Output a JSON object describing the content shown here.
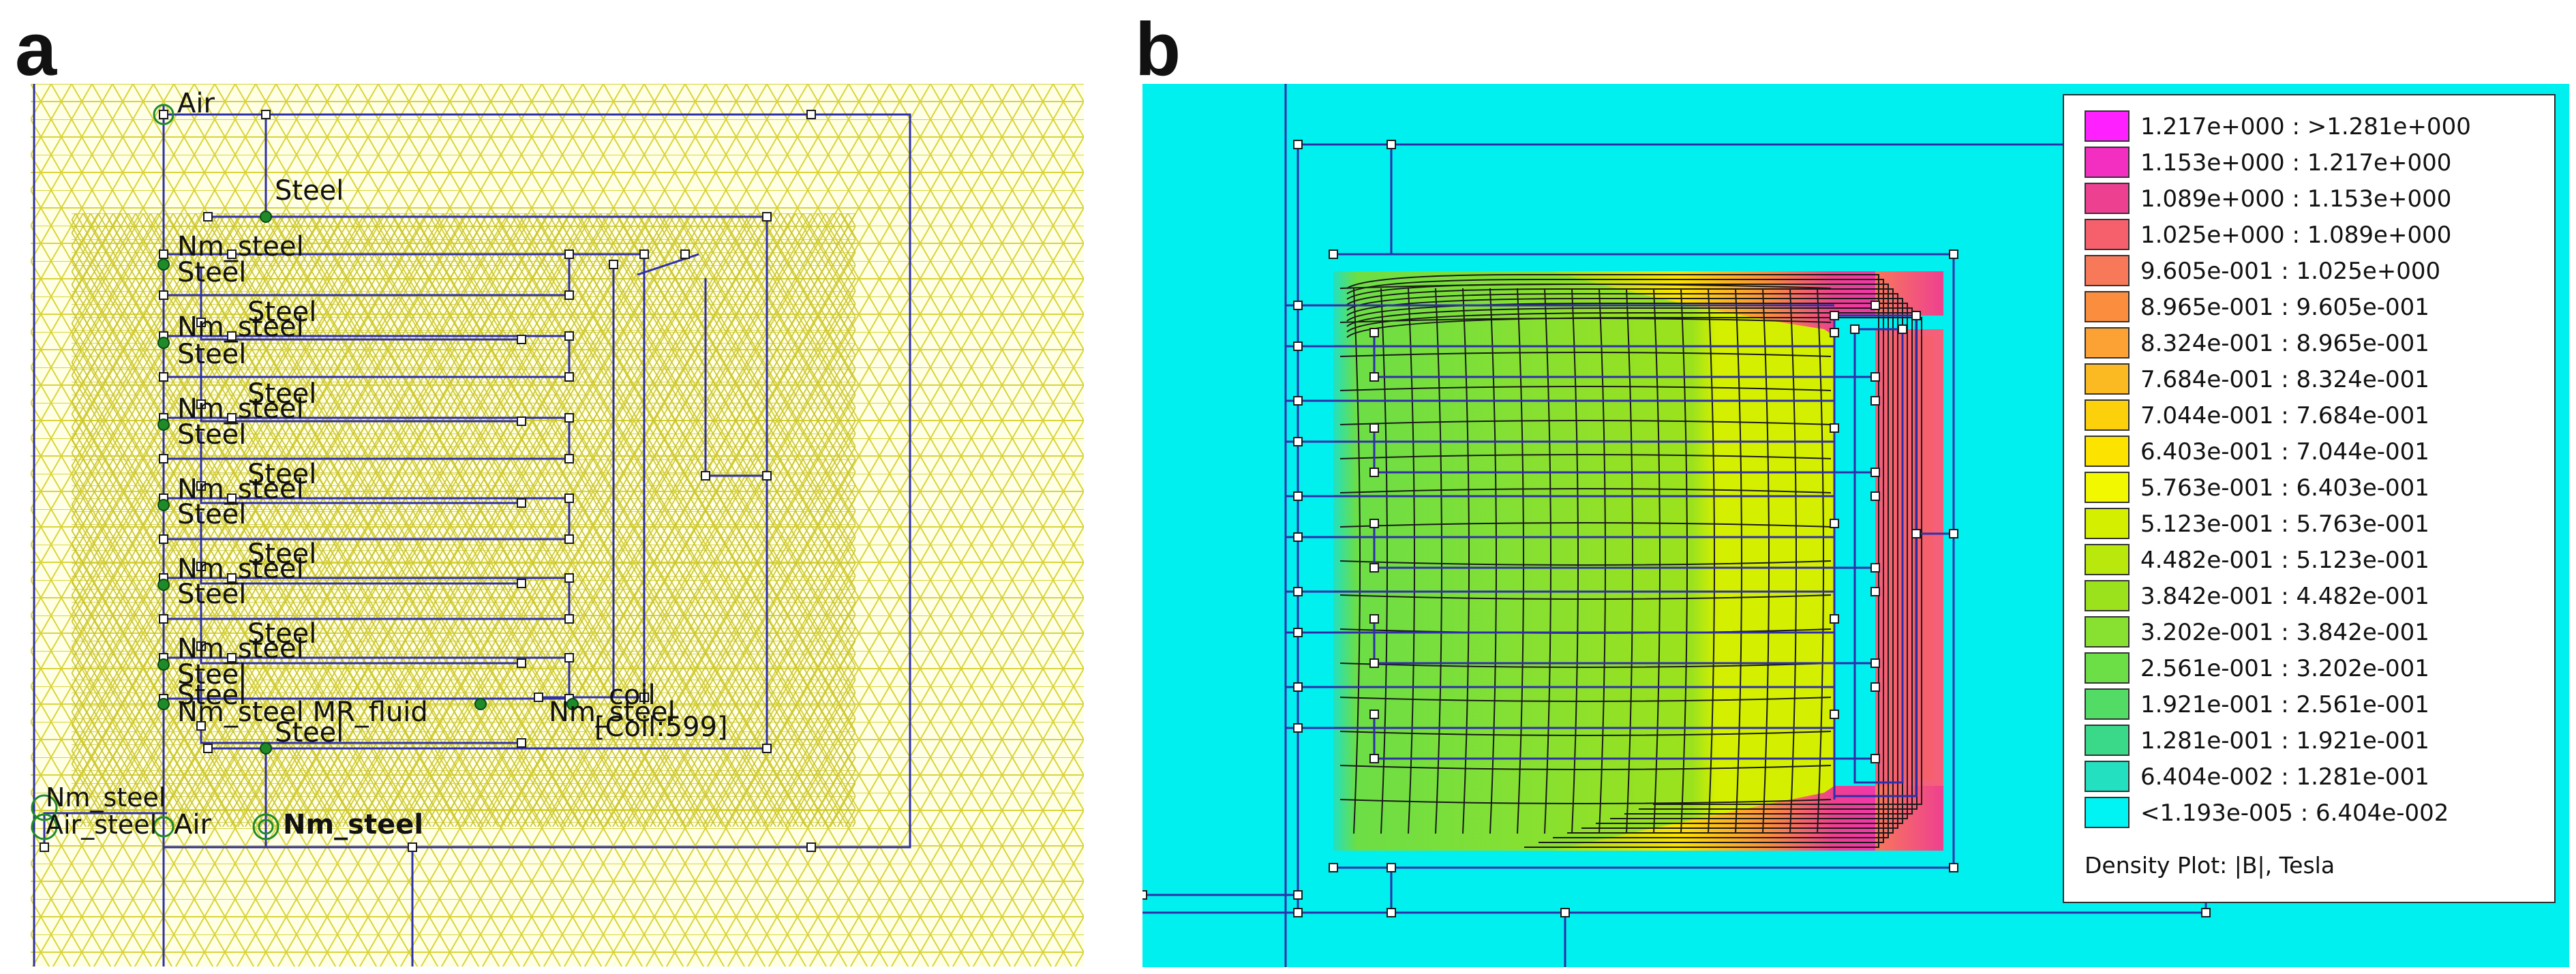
{
  "panel_letters": {
    "a": "a",
    "b": "b"
  },
  "panel_a": {
    "labels": {
      "air_top": "Air",
      "steel_top": "Steel",
      "nm_steel_1": "Nm_steel",
      "steel_1": "Steel",
      "steel_1b": "Steel",
      "nm_steel_2": "Nm_steel",
      "steel_2": "Steel",
      "steel_2b": "Steel",
      "nm_steel_3": "Nm_steel",
      "steel_3": "Steel",
      "steel_3b": "Steel",
      "nm_steel_4": "Nm_steel",
      "steel_4": "Steel",
      "steel_4b": "Steel",
      "nm_steel_5": "Nm_steel",
      "steel_5": "Steel",
      "steel_5b": "Steel",
      "nm_steel_6": "Nm_steel",
      "steel_6": "Steel",
      "steel_fluid": "Steel",
      "nm_mr_fluid": "Nm_steel MR_fluid",
      "nm_steel_coil": "Nm_steel",
      "coil": "coil",
      "coil_count": "[Coil:599]",
      "steel_bottom": "Steel",
      "nm_steel_corner": "Nm_steel",
      "air_steel_corner": "Air_steel",
      "air_bottom": "Air",
      "nm_steel_bottom": "Nm_steel"
    }
  },
  "panel_b": {
    "legend": {
      "entries": [
        {
          "range": "1.217e+000 : >1.281e+000",
          "color": "#ff20ff"
        },
        {
          "range": "1.153e+000 : 1.217e+000",
          "color": "#f22fc0"
        },
        {
          "range": "1.089e+000 : 1.153e+000",
          "color": "#ee4090"
        },
        {
          "range": "1.025e+000 : 1.089e+000",
          "color": "#f5606c"
        },
        {
          "range": "9.605e-001 : 1.025e+000",
          "color": "#f8785a"
        },
        {
          "range": "8.965e-001 : 9.605e-001",
          "color": "#fb8e3e"
        },
        {
          "range": "8.324e-001 : 8.965e-001",
          "color": "#fca234"
        },
        {
          "range": "7.684e-001 : 8.324e-001",
          "color": "#fcba22"
        },
        {
          "range": "7.044e-001 : 7.684e-001",
          "color": "#fdd00c"
        },
        {
          "range": "6.403e-001 : 7.044e-001",
          "color": "#fde300"
        },
        {
          "range": "5.763e-001 : 6.403e-001",
          "color": "#f2f800"
        },
        {
          "range": "5.123e-001 : 5.763e-001",
          "color": "#d4f000"
        },
        {
          "range": "4.482e-001 : 5.123e-001",
          "color": "#b8e80c"
        },
        {
          "range": "3.842e-001 : 4.482e-001",
          "color": "#9ce21c"
        },
        {
          "range": "3.202e-001 : 3.842e-001",
          "color": "#88e030"
        },
        {
          "range": "2.561e-001 : 3.202e-001",
          "color": "#6cde46"
        },
        {
          "range": "1.921e-001 : 2.561e-001",
          "color": "#52dc66"
        },
        {
          "range": "1.281e-001 : 1.921e-001",
          "color": "#3ad98a"
        },
        {
          "range": "6.404e-002 : 1.281e-001",
          "color": "#22e0c0"
        },
        {
          "range": "<1.193e-005 : 6.404e-002",
          "color": "#00f4f4"
        }
      ],
      "title": "Density Plot: |B|, Tesla"
    }
  },
  "colors": {
    "mesh": "#d9d43a",
    "mesh_bg": "#ffffe6",
    "outline": "#2f2fa8",
    "node_green": "#1f8a2a",
    "field_bg": "#00f0f0",
    "contour": "#1a1a1a"
  }
}
